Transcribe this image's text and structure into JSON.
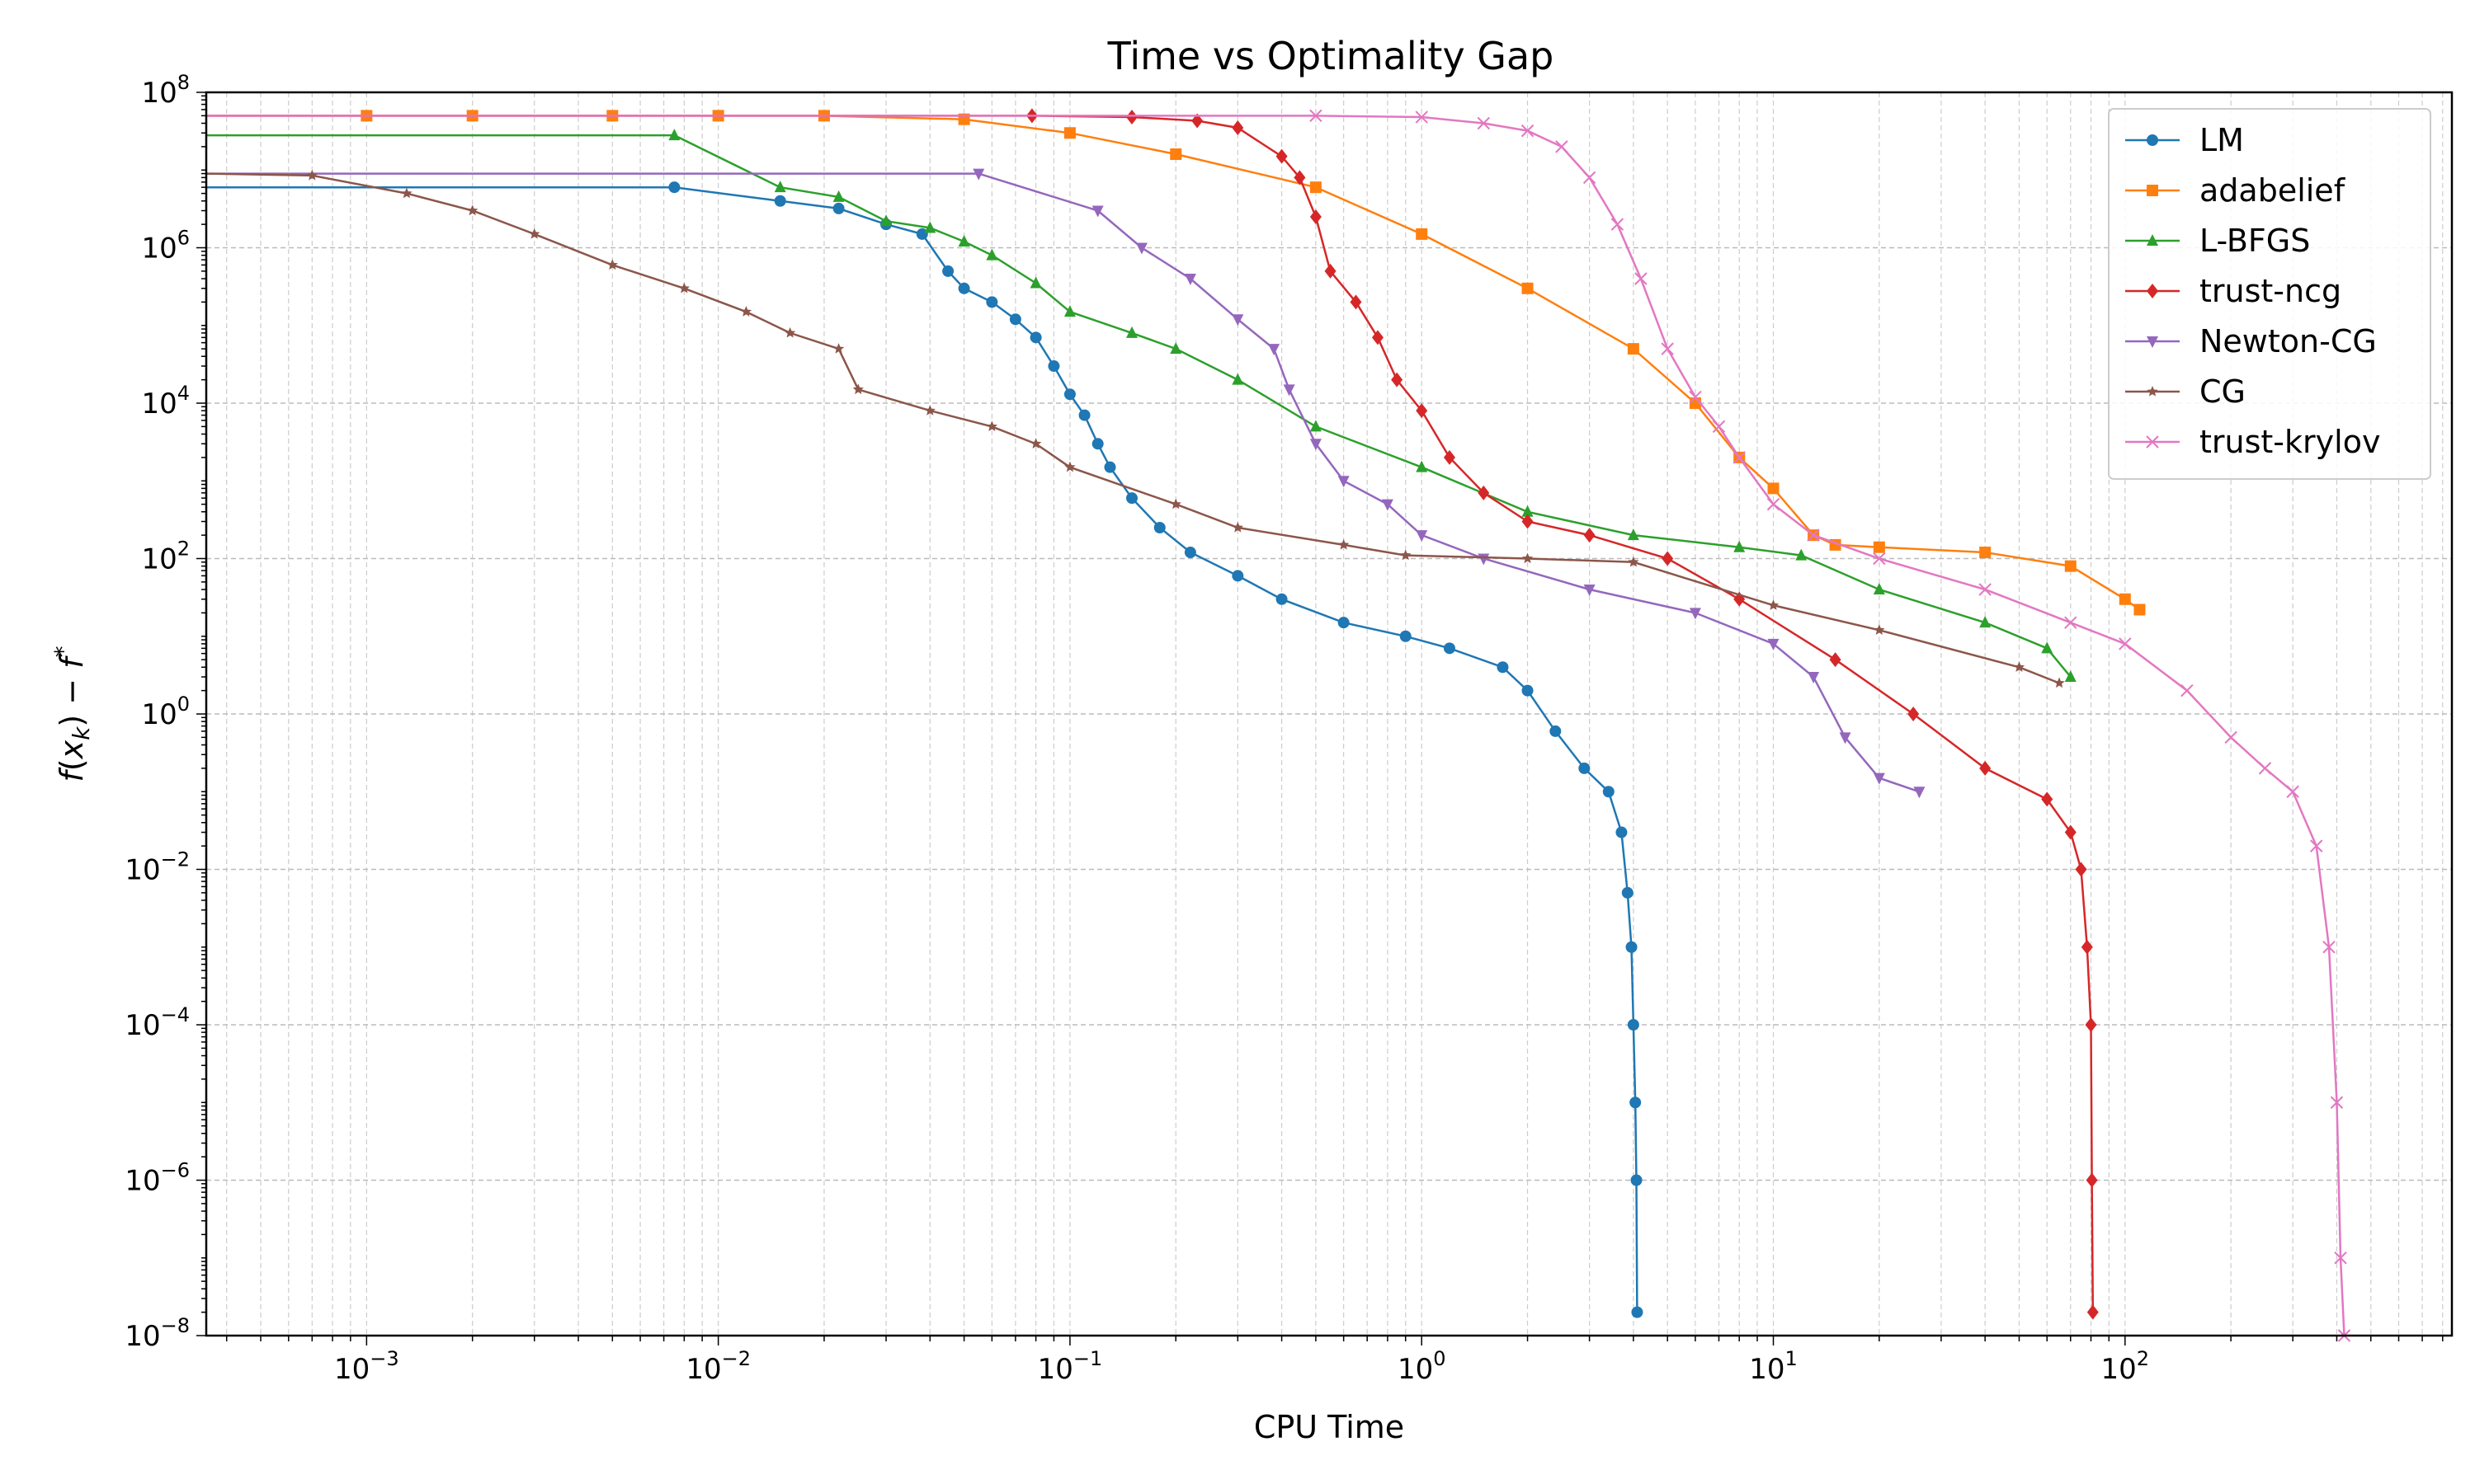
{
  "chart_data": {
    "type": "line",
    "title": "Time vs Optimality Gap",
    "xlabel": "CPU Time",
    "ylabel": "f(x_k) − f*",
    "xscale": "log",
    "yscale": "log",
    "xlim": [
      0.00035,
      850
    ],
    "ylim": [
      1e-08,
      100000000.0
    ],
    "x_ticks": [
      {
        "value": 0.001,
        "base": "10",
        "exp": "−3"
      },
      {
        "value": 0.01,
        "base": "10",
        "exp": "−2"
      },
      {
        "value": 0.1,
        "base": "10",
        "exp": "−1"
      },
      {
        "value": 1,
        "base": "10",
        "exp": "0"
      },
      {
        "value": 10,
        "base": "10",
        "exp": "1"
      },
      {
        "value": 100,
        "base": "10",
        "exp": "2"
      }
    ],
    "y_ticks": [
      {
        "value": 100000000.0,
        "base": "10",
        "exp": "8"
      },
      {
        "value": 1000000.0,
        "base": "10",
        "exp": "6"
      },
      {
        "value": 10000.0,
        "base": "10",
        "exp": "4"
      },
      {
        "value": 100.0,
        "base": "10",
        "exp": "2"
      },
      {
        "value": 1,
        "base": "10",
        "exp": "0"
      },
      {
        "value": 0.01,
        "base": "10",
        "exp": "−2"
      },
      {
        "value": 0.0001,
        "base": "10",
        "exp": "−4"
      },
      {
        "value": 1e-06,
        "base": "10",
        "exp": "−6"
      },
      {
        "value": 1e-08,
        "base": "10",
        "exp": "−8"
      }
    ],
    "grid": true,
    "legend_position": "top-right",
    "series": [
      {
        "name": "LM",
        "color": "#1f77b4",
        "marker": "circle",
        "points": [
          [
            0.00035,
            6000000.0
          ],
          [
            0.0075,
            6000000.0
          ],
          [
            0.015,
            4000000.0
          ],
          [
            0.022,
            3200000.0
          ],
          [
            0.03,
            2000000.0
          ],
          [
            0.038,
            1500000.0
          ],
          [
            0.045,
            500000.0
          ],
          [
            0.05,
            300000.0
          ],
          [
            0.06,
            200000.0
          ],
          [
            0.07,
            120000.0
          ],
          [
            0.08,
            70000.0
          ],
          [
            0.09,
            30000.0
          ],
          [
            0.1,
            13000.0
          ],
          [
            0.11,
            7000.0
          ],
          [
            0.12,
            3000.0
          ],
          [
            0.13,
            1500.0
          ],
          [
            0.15,
            600
          ],
          [
            0.18,
            250
          ],
          [
            0.22,
            120
          ],
          [
            0.3,
            60
          ],
          [
            0.4,
            30
          ],
          [
            0.6,
            15
          ],
          [
            0.9,
            10
          ],
          [
            1.2,
            7
          ],
          [
            1.7,
            4
          ],
          [
            2.0,
            2
          ],
          [
            2.4,
            0.6
          ],
          [
            2.9,
            0.2
          ],
          [
            3.4,
            0.1
          ],
          [
            3.7,
            0.03
          ],
          [
            3.85,
            0.005
          ],
          [
            3.95,
            0.001
          ],
          [
            4.0,
            0.0001
          ],
          [
            4.05,
            1e-05
          ],
          [
            4.08,
            1e-06
          ],
          [
            4.1,
            2e-08
          ]
        ]
      },
      {
        "name": "adabelief",
        "color": "#ff7f0e",
        "marker": "square",
        "points": [
          [
            0.00035,
            50000000.0
          ],
          [
            0.001,
            50000000.0
          ],
          [
            0.002,
            50000000.0
          ],
          [
            0.005,
            50000000.0
          ],
          [
            0.01,
            50000000.0
          ],
          [
            0.02,
            50000000.0
          ],
          [
            0.05,
            45000000.0
          ],
          [
            0.1,
            30000000.0
          ],
          [
            0.2,
            16000000.0
          ],
          [
            0.5,
            6000000.0
          ],
          [
            1.0,
            1500000.0
          ],
          [
            2.0,
            300000.0
          ],
          [
            4.0,
            50000.0
          ],
          [
            6.0,
            10000.0
          ],
          [
            8.0,
            2000.0
          ],
          [
            10.0,
            800
          ],
          [
            13.0,
            200
          ],
          [
            15.0,
            150
          ],
          [
            20.0,
            140
          ],
          [
            40.0,
            120
          ],
          [
            70.0,
            80
          ],
          [
            100.0,
            30
          ],
          [
            110.0,
            22
          ]
        ]
      },
      {
        "name": "L-BFGS",
        "color": "#2ca02c",
        "marker": "triangle-up",
        "points": [
          [
            0.00035,
            28000000.0
          ],
          [
            0.0075,
            28000000.0
          ],
          [
            0.015,
            6000000.0
          ],
          [
            0.022,
            4500000.0
          ],
          [
            0.03,
            2200000.0
          ],
          [
            0.04,
            1800000.0
          ],
          [
            0.05,
            1200000.0
          ],
          [
            0.06,
            800000.0
          ],
          [
            0.08,
            350000.0
          ],
          [
            0.1,
            150000.0
          ],
          [
            0.15,
            80000.0
          ],
          [
            0.2,
            50000.0
          ],
          [
            0.3,
            20000.0
          ],
          [
            0.5,
            5000.0
          ],
          [
            1.0,
            1500.0
          ],
          [
            2.0,
            400
          ],
          [
            4.0,
            200
          ],
          [
            8.0,
            140
          ],
          [
            12.0,
            110
          ],
          [
            20.0,
            40
          ],
          [
            40.0,
            15
          ],
          [
            60.0,
            7
          ],
          [
            70.0,
            3
          ]
        ]
      },
      {
        "name": "trust-ncg",
        "color": "#d62728",
        "marker": "diamond",
        "points": [
          [
            0.00035,
            50000000.0
          ],
          [
            0.078,
            50000000.0
          ],
          [
            0.15,
            48000000.0
          ],
          [
            0.23,
            43000000.0
          ],
          [
            0.3,
            35000000.0
          ],
          [
            0.4,
            15000000.0
          ],
          [
            0.45,
            8000000.0
          ],
          [
            0.5,
            2500000.0
          ],
          [
            0.55,
            500000.0
          ],
          [
            0.65,
            200000.0
          ],
          [
            0.75,
            70000.0
          ],
          [
            0.85,
            20000.0
          ],
          [
            1.0,
            8000.0
          ],
          [
            1.2,
            2000.0
          ],
          [
            1.5,
            700
          ],
          [
            2.0,
            300
          ],
          [
            3.0,
            200
          ],
          [
            5.0,
            100
          ],
          [
            8.0,
            30
          ],
          [
            15.0,
            5
          ],
          [
            25.0,
            1
          ],
          [
            40.0,
            0.2
          ],
          [
            60.0,
            0.08
          ],
          [
            70.0,
            0.03
          ],
          [
            75.0,
            0.01
          ],
          [
            78.0,
            0.001
          ],
          [
            80.0,
            0.0001
          ],
          [
            80.5,
            1e-06
          ],
          [
            81.0,
            2e-08
          ]
        ]
      },
      {
        "name": "Newton-CG",
        "color": "#9467bd",
        "marker": "triangle-down",
        "points": [
          [
            0.00035,
            9000000.0
          ],
          [
            0.055,
            9000000.0
          ],
          [
            0.12,
            3000000.0
          ],
          [
            0.16,
            1000000.0
          ],
          [
            0.22,
            400000.0
          ],
          [
            0.3,
            120000.0
          ],
          [
            0.38,
            50000.0
          ],
          [
            0.42,
            15000.0
          ],
          [
            0.5,
            3000.0
          ],
          [
            0.6,
            1000.0
          ],
          [
            0.8,
            500
          ],
          [
            1.0,
            200
          ],
          [
            1.5,
            100
          ],
          [
            3.0,
            40
          ],
          [
            6.0,
            20
          ],
          [
            10.0,
            8
          ],
          [
            13.0,
            3
          ],
          [
            16.0,
            0.5
          ],
          [
            20.0,
            0.15
          ],
          [
            26.0,
            0.1
          ]
        ]
      },
      {
        "name": "CG",
        "color": "#8c564b",
        "marker": "star",
        "points": [
          [
            0.00035,
            9000000.0
          ],
          [
            0.0007,
            8500000.0
          ],
          [
            0.0013,
            5000000.0
          ],
          [
            0.002,
            3000000.0
          ],
          [
            0.003,
            1500000.0
          ],
          [
            0.005,
            600000.0
          ],
          [
            0.008,
            300000.0
          ],
          [
            0.012,
            150000.0
          ],
          [
            0.016,
            80000.0
          ],
          [
            0.022,
            50000.0
          ],
          [
            0.025,
            15000.0
          ],
          [
            0.04,
            8000.0
          ],
          [
            0.06,
            5000.0
          ],
          [
            0.08,
            3000.0
          ],
          [
            0.1,
            1500.0
          ],
          [
            0.2,
            500
          ],
          [
            0.3,
            250
          ],
          [
            0.6,
            150
          ],
          [
            0.9,
            110
          ],
          [
            2.0,
            100
          ],
          [
            4.0,
            90
          ],
          [
            10.0,
            25
          ],
          [
            20.0,
            12
          ],
          [
            50.0,
            4
          ],
          [
            65.0,
            2.5
          ]
        ]
      },
      {
        "name": "trust-krylov",
        "color": "#e377c2",
        "marker": "x",
        "points": [
          [
            0.00035,
            50000000.0
          ],
          [
            0.5,
            50000000.0
          ],
          [
            1.0,
            48000000.0
          ],
          [
            1.5,
            40000000.0
          ],
          [
            2.0,
            32000000.0
          ],
          [
            2.5,
            20000000.0
          ],
          [
            3.0,
            8000000.0
          ],
          [
            3.6,
            2000000.0
          ],
          [
            4.2,
            400000.0
          ],
          [
            5.0,
            50000.0
          ],
          [
            6.0,
            12000.0
          ],
          [
            7.0,
            5000.0
          ],
          [
            8.0,
            2000.0
          ],
          [
            10.0,
            500
          ],
          [
            13.0,
            200
          ],
          [
            20.0,
            100
          ],
          [
            40.0,
            40
          ],
          [
            70.0,
            15
          ],
          [
            100.0,
            8
          ],
          [
            150.0,
            2
          ],
          [
            200.0,
            0.5
          ],
          [
            250.0,
            0.2
          ],
          [
            300.0,
            0.1
          ],
          [
            350.0,
            0.02
          ],
          [
            380.0,
            0.001
          ],
          [
            400.0,
            1e-05
          ],
          [
            410.0,
            1e-07
          ],
          [
            420.0,
            1e-08
          ]
        ]
      }
    ]
  }
}
